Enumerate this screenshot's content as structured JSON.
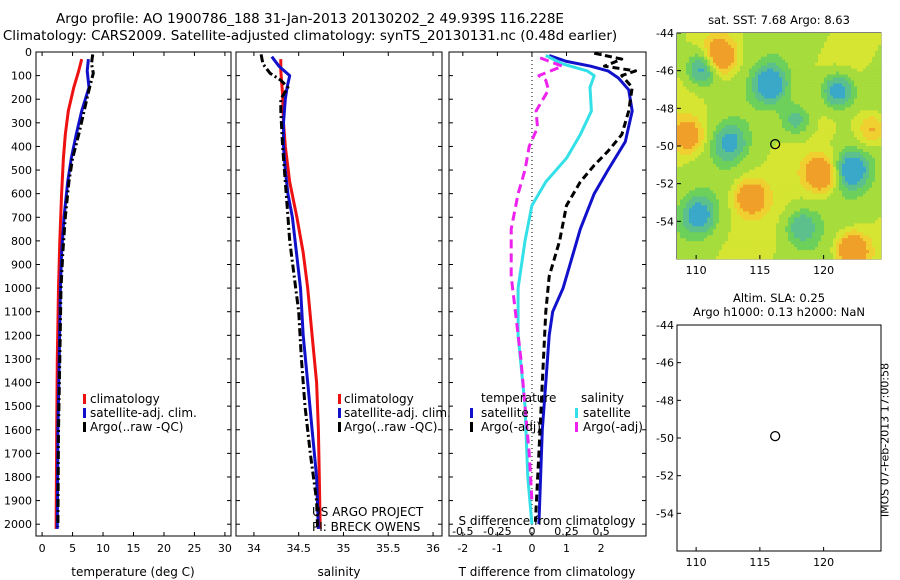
{
  "header": {
    "line1": "Argo profile: AO 1900786_188 31-Jan-2013 20130202_2 49.939S 116.228E",
    "line2": "Climatology: CARS2009. Satellite-adjusted climatology: synTS_20130131.nc (0.48d earlier)"
  },
  "side_text": "IMOS 07-Feb-2013 17:00:58",
  "credit": {
    "line1": "US ARGO PROJECT",
    "line2": "PI: BRECK OWENS"
  },
  "colors": {
    "clim": "#ee1111",
    "sat": "#1111cc",
    "argo": "#000000",
    "sat_sal": "#33e0e8",
    "argo_sal": "#ee22ee"
  },
  "chart_data": [
    {
      "type": "line",
      "name": "temperature-profile",
      "xlabel": "temperature (deg C)",
      "xlim": [
        -1,
        31
      ],
      "xticks": [
        0,
        5,
        10,
        15,
        20,
        25,
        30
      ],
      "ylim": [
        2050,
        0
      ],
      "yticks": [
        0,
        100,
        200,
        300,
        400,
        500,
        600,
        700,
        800,
        900,
        1000,
        1100,
        1200,
        1300,
        1400,
        1500,
        1600,
        1700,
        1800,
        1900,
        2000
      ],
      "legend": [
        "climatology",
        "satellite-adj. clim.",
        "Argo(..raw -QC)"
      ],
      "legend_position": "lower-center",
      "series": [
        {
          "name": "climatology",
          "color": "#ee1111",
          "dash": "",
          "points": [
            [
              6.5,
              30
            ],
            [
              6.0,
              80
            ],
            [
              5.2,
              150
            ],
            [
              4.3,
              250
            ],
            [
              3.8,
              350
            ],
            [
              3.5,
              450
            ],
            [
              3.2,
              600
            ],
            [
              2.9,
              800
            ],
            [
              2.7,
              1000
            ],
            [
              2.5,
              1300
            ],
            [
              2.4,
              1600
            ],
            [
              2.3,
              2020
            ]
          ]
        },
        {
          "name": "satellite-adj. clim.",
          "color": "#1111cc",
          "dash": "",
          "points": [
            [
              7.6,
              30
            ],
            [
              7.4,
              80
            ],
            [
              7.7,
              150
            ],
            [
              6.5,
              250
            ],
            [
              5.6,
              350
            ],
            [
              4.8,
              450
            ],
            [
              4.2,
              550
            ],
            [
              3.6,
              700
            ],
            [
              3.2,
              850
            ],
            [
              3.0,
              1000
            ],
            [
              2.8,
              1300
            ],
            [
              2.6,
              1600
            ],
            [
              2.5,
              2020
            ]
          ]
        },
        {
          "name": "Argo(..raw -QC)",
          "color": "#000000",
          "dash": "8,3,2,3",
          "points": [
            [
              8.3,
              10
            ],
            [
              8.1,
              50
            ],
            [
              8.4,
              90
            ],
            [
              7.8,
              150
            ],
            [
              6.9,
              250
            ],
            [
              6.0,
              350
            ],
            [
              5.0,
              450
            ],
            [
              4.4,
              550
            ],
            [
              3.8,
              700
            ],
            [
              3.4,
              850
            ],
            [
              3.1,
              1000
            ],
            [
              2.9,
              1300
            ],
            [
              2.7,
              1600
            ],
            [
              2.6,
              2010
            ]
          ]
        }
      ]
    },
    {
      "type": "line",
      "name": "salinity-profile",
      "xlabel": "salinity",
      "xlim": [
        33.8,
        36.1
      ],
      "xticks": [
        34,
        34.5,
        35,
        35.5,
        36
      ],
      "ylim": [
        2050,
        0
      ],
      "legend": [
        "climatology",
        "satellite-adj. clim.",
        "Argo(..raw -QC)"
      ],
      "legend_position": "lower-right",
      "series": [
        {
          "name": "climatology",
          "color": "#ee1111",
          "dash": "",
          "points": [
            [
              34.3,
              30
            ],
            [
              34.3,
              80
            ],
            [
              34.32,
              180
            ],
            [
              34.33,
              300
            ],
            [
              34.35,
              400
            ],
            [
              34.4,
              550
            ],
            [
              34.48,
              700
            ],
            [
              34.55,
              850
            ],
            [
              34.6,
              1000
            ],
            [
              34.65,
              1200
            ],
            [
              34.7,
              1400
            ],
            [
              34.72,
              1600
            ],
            [
              34.73,
              1800
            ],
            [
              34.74,
              2020
            ]
          ]
        },
        {
          "name": "satellite-adj. clim.",
          "color": "#1111cc",
          "dash": "",
          "points": [
            [
              34.2,
              20
            ],
            [
              34.28,
              60
            ],
            [
              34.4,
              100
            ],
            [
              34.37,
              150
            ],
            [
              34.35,
              200
            ],
            [
              34.33,
              300
            ],
            [
              34.33,
              400
            ],
            [
              34.35,
              500
            ],
            [
              34.38,
              600
            ],
            [
              34.43,
              700
            ],
            [
              34.46,
              800
            ],
            [
              34.49,
              900
            ],
            [
              34.52,
              1000
            ],
            [
              34.55,
              1200
            ],
            [
              34.6,
              1400
            ],
            [
              34.65,
              1600
            ],
            [
              34.7,
              1800
            ],
            [
              34.72,
              2020
            ]
          ]
        },
        {
          "name": "Argo(..raw -QC)",
          "color": "#000000",
          "dash": "8,3,2,3",
          "points": [
            [
              34.08,
              10
            ],
            [
              34.1,
              50
            ],
            [
              34.18,
              90
            ],
            [
              34.3,
              120
            ],
            [
              34.38,
              150
            ],
            [
              34.3,
              200
            ],
            [
              34.3,
              250
            ],
            [
              34.32,
              400
            ],
            [
              34.35,
              550
            ],
            [
              34.37,
              650
            ],
            [
              34.4,
              800
            ],
            [
              34.45,
              950
            ],
            [
              34.5,
              1100
            ],
            [
              34.53,
              1300
            ],
            [
              34.57,
              1500
            ],
            [
              34.63,
              1700
            ],
            [
              34.7,
              1900
            ],
            [
              34.71,
              2010
            ]
          ]
        }
      ]
    },
    {
      "type": "line",
      "name": "difference-profile",
      "xlabel": "T difference from climatology",
      "x2label": "S difference from climatology",
      "xlim": [
        -2.4,
        3.3
      ],
      "xticks": [
        -2,
        -1,
        0,
        1,
        2
      ],
      "x2lim": [
        -0.6,
        0.825
      ],
      "x2ticks": [
        -0.5,
        -0.25,
        0,
        0.25,
        0.5
      ],
      "x2ticklabels": [
        "-0.5",
        "-0.25",
        "0",
        "0.25",
        "0.5"
      ],
      "ylim": [
        2050,
        0
      ],
      "legend_titles": [
        "temperature",
        "salinity"
      ],
      "legend": [
        "satellite",
        "Argo(-adj)",
        "satellite",
        "Argo(-adj)"
      ],
      "zero_line": "dotted",
      "series": [
        {
          "name": "satellite",
          "group": "temperature",
          "color": "#1111cc",
          "dash": "",
          "axis": "T",
          "points": [
            [
              0.5,
              15
            ],
            [
              1.0,
              40
            ],
            [
              1.7,
              60
            ],
            [
              2.2,
              80
            ],
            [
              2.5,
              110
            ],
            [
              2.8,
              160
            ],
            [
              2.9,
              250
            ],
            [
              2.7,
              380
            ],
            [
              2.2,
              500
            ],
            [
              1.8,
              600
            ],
            [
              1.4,
              750
            ],
            [
              1.1,
              900
            ],
            [
              0.9,
              1000
            ],
            [
              0.6,
              1100
            ],
            [
              0.5,
              1200
            ],
            [
              0.4,
              1400
            ],
            [
              0.3,
              1600
            ],
            [
              0.25,
              1800
            ],
            [
              0.2,
              2000
            ]
          ]
        },
        {
          "name": "Argo(-adj)",
          "group": "temperature",
          "color": "#000000",
          "dash": "7,4",
          "axis": "T",
          "points": [
            [
              1.8,
              5
            ],
            [
              2.6,
              30
            ],
            [
              2.1,
              60
            ],
            [
              3.0,
              80
            ],
            [
              2.6,
              100
            ],
            [
              2.9,
              150
            ],
            [
              2.8,
              250
            ],
            [
              2.6,
              350
            ],
            [
              2.2,
              420
            ],
            [
              1.8,
              480
            ],
            [
              1.4,
              550
            ],
            [
              1.0,
              650
            ],
            [
              0.8,
              800
            ],
            [
              0.5,
              950
            ],
            [
              0.4,
              1100
            ],
            [
              0.3,
              1400
            ],
            [
              0.2,
              1700
            ],
            [
              0.1,
              1990
            ]
          ]
        },
        {
          "name": "satellite",
          "group": "salinity",
          "color": "#33e0e8",
          "dash": "",
          "axis": "S",
          "points": [
            [
              0.1,
              15
            ],
            [
              0.22,
              50
            ],
            [
              0.4,
              80
            ],
            [
              0.45,
              100
            ],
            [
              0.42,
              150
            ],
            [
              0.43,
              250
            ],
            [
              0.35,
              350
            ],
            [
              0.25,
              450
            ],
            [
              0.1,
              550
            ],
            [
              0.0,
              650
            ],
            [
              -0.05,
              800
            ],
            [
              -0.1,
              1000
            ],
            [
              -0.1,
              1200
            ],
            [
              -0.05,
              1500
            ],
            [
              -0.03,
              1800
            ],
            [
              0.0,
              2000
            ]
          ]
        },
        {
          "name": "Argo(-adj)",
          "group": "salinity",
          "color": "#ee22ee",
          "dash": "9,5",
          "axis": "S",
          "points": [
            [
              0.06,
              25
            ],
            [
              0.22,
              60
            ],
            [
              0.05,
              100
            ],
            [
              0.1,
              120
            ],
            [
              0.12,
              160
            ],
            [
              0.03,
              250
            ],
            [
              0.04,
              320
            ],
            [
              -0.02,
              400
            ],
            [
              -0.05,
              500
            ],
            [
              -0.1,
              600
            ],
            [
              -0.15,
              750
            ],
            [
              -0.15,
              950
            ],
            [
              -0.12,
              1100
            ],
            [
              -0.08,
              1300
            ],
            [
              -0.05,
              1500
            ],
            [
              -0.02,
              1700
            ],
            [
              0.0,
              1900
            ]
          ]
        }
      ]
    },
    {
      "type": "heatmap",
      "name": "sst-map",
      "title": "sat. SST: 7.68 Argo: 8.63",
      "xlim": [
        108.5,
        124.5
      ],
      "xticks": [
        110,
        115,
        120
      ],
      "ylim": [
        -56,
        -44
      ],
      "yticks": [
        -44,
        -46,
        -48,
        -50,
        -52,
        -54
      ],
      "marker": [
        116.2,
        -49.9
      ]
    },
    {
      "type": "heatmap",
      "name": "sla-map",
      "title": "Altim. SLA: 0.25",
      "subtitle": "Argo h1000: 0.13 h2000: NaN",
      "xlim": [
        108.5,
        124.5
      ],
      "xticks": [
        110,
        115,
        120
      ],
      "ylim": [
        -56,
        -44
      ],
      "yticks": [
        -44,
        -46,
        -48,
        -50,
        -52,
        -54
      ],
      "marker": [
        116.2,
        -49.9
      ]
    }
  ]
}
